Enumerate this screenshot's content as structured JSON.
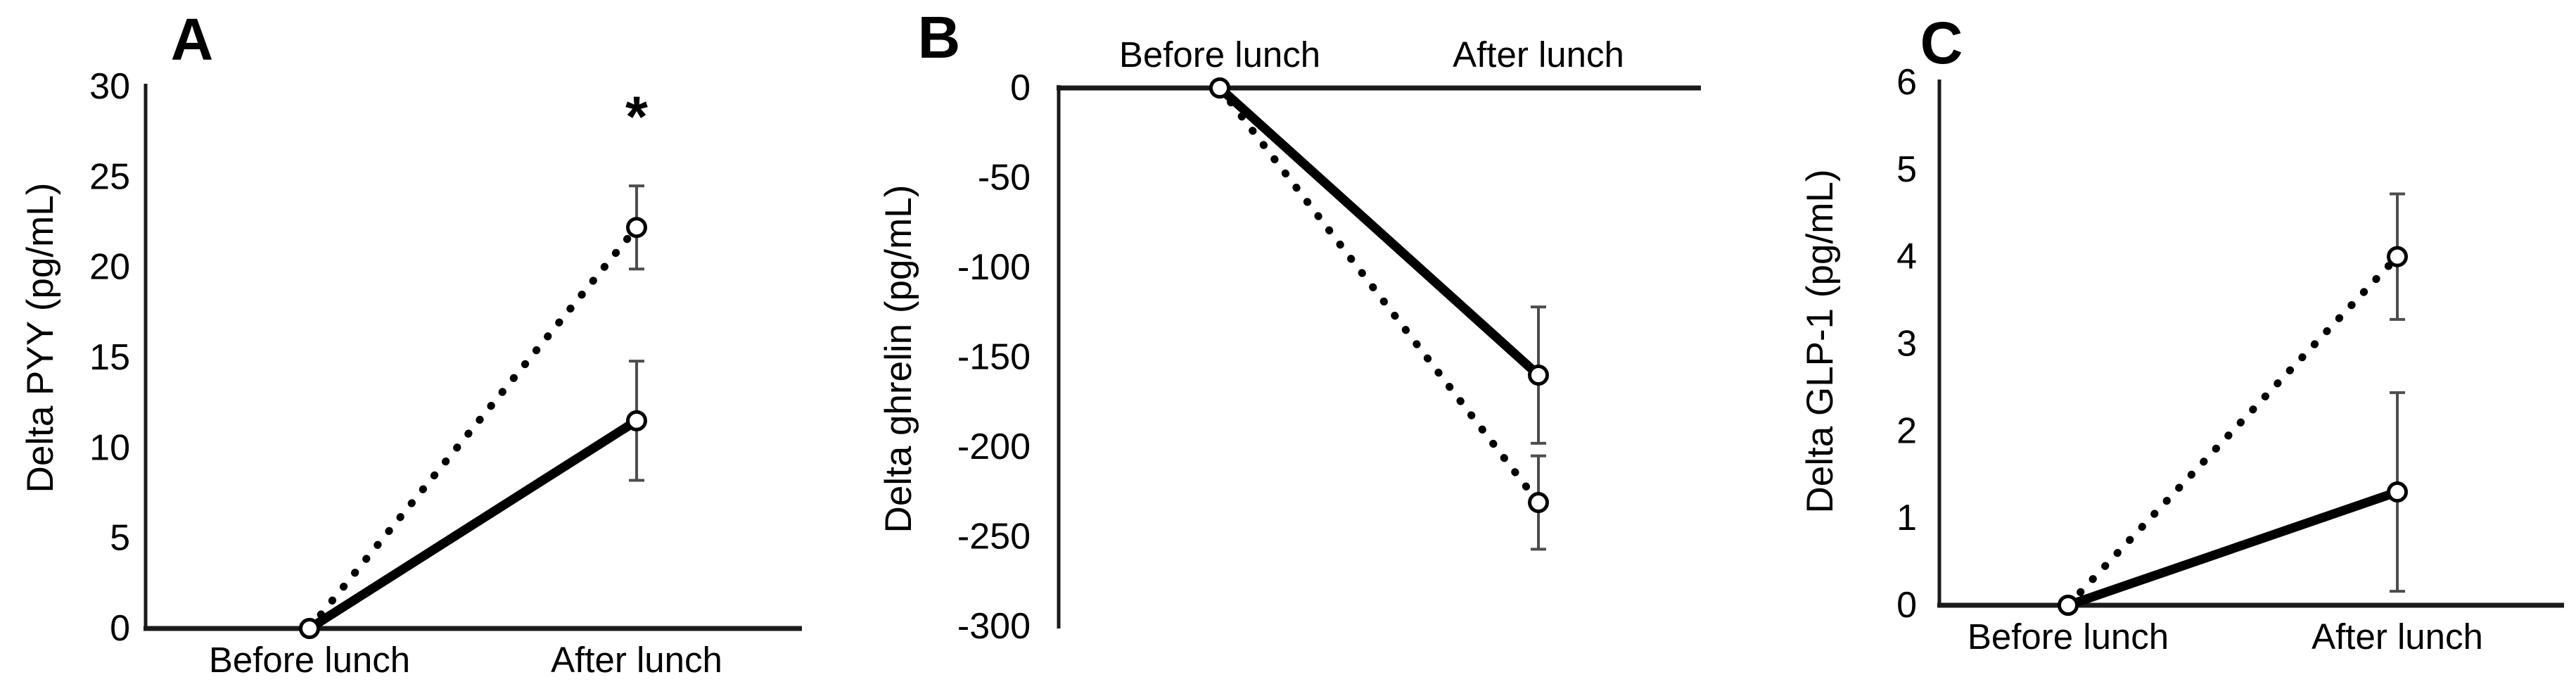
{
  "figure": {
    "background_color": "#ffffff",
    "text_color": "#000000",
    "line_color": "#000000",
    "axis_color": "#1a1a1a",
    "error_bar_color": "#4d4d4d",
    "marker_style": "open-circle"
  },
  "chart_data": [
    {
      "type": "line",
      "panel_label": "A",
      "ylabel": "Delta PYY (pg/mL)",
      "xlabel": "",
      "categories": [
        "Before lunch",
        "After lunch"
      ],
      "category_labels_position": "below-axis",
      "ylim": [
        0,
        30
      ],
      "yticks": [
        30,
        25,
        20,
        15,
        10,
        5,
        0
      ],
      "grid": false,
      "legend_position": "none",
      "series": [
        {
          "name": "dotted-series",
          "line_style": "dotted",
          "marker": "open-circle",
          "values": [
            0,
            22.2
          ],
          "error": [
            0,
            2.3
          ]
        },
        {
          "name": "solid-series",
          "line_style": "solid",
          "marker": "open-circle",
          "values": [
            0,
            11.5
          ],
          "error": [
            0,
            3.3
          ]
        }
      ],
      "annotations": [
        {
          "text": "*",
          "category_index": 1,
          "y_value": 28
        }
      ]
    },
    {
      "type": "line",
      "panel_label": "B",
      "ylabel": "Delta ghrelin (pg/mL)",
      "xlabel": "",
      "categories": [
        "Before lunch",
        "After lunch"
      ],
      "category_labels_position": "above-axis",
      "ylim": [
        0,
        -300
      ],
      "yticks": [
        0,
        -50,
        -100,
        -150,
        -200,
        -250,
        -300
      ],
      "grid": false,
      "legend_position": "none",
      "series": [
        {
          "name": "solid-series",
          "line_style": "solid",
          "marker": "open-circle",
          "values": [
            0,
            -160
          ],
          "error": [
            0,
            38
          ]
        },
        {
          "name": "dotted-series",
          "line_style": "dotted",
          "marker": "open-circle",
          "values": [
            0,
            -231
          ],
          "error": [
            0,
            26
          ]
        }
      ],
      "annotations": []
    },
    {
      "type": "line",
      "panel_label": "C",
      "ylabel": "Delta GLP-1 (pg/mL)",
      "xlabel": "",
      "categories": [
        "Before lunch",
        "After lunch"
      ],
      "category_labels_position": "below-axis",
      "ylim": [
        0,
        6
      ],
      "yticks": [
        6,
        5,
        4,
        3,
        2,
        1,
        0
      ],
      "grid": false,
      "legend_position": "none",
      "series": [
        {
          "name": "dotted-series",
          "line_style": "dotted",
          "marker": "open-circle",
          "values": [
            0,
            4.0
          ],
          "error": [
            0,
            0.72
          ]
        },
        {
          "name": "solid-series",
          "line_style": "solid",
          "marker": "open-circle",
          "values": [
            0,
            1.3
          ],
          "error": [
            0,
            1.14
          ]
        }
      ],
      "annotations": []
    }
  ]
}
